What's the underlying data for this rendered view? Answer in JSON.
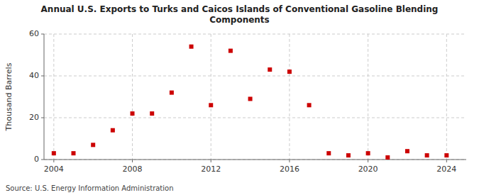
{
  "chart_data": {
    "type": "scatter",
    "title": "Annual U.S. Exports to Turks and Caicos Islands of Conventional Gasoline Blending\nComponents",
    "ylabel": "Thousand Barrels",
    "annotations": [
      "Source: U.S. Energy Information Administration"
    ],
    "x": [
      2004,
      2005,
      2006,
      2007,
      2008,
      2009,
      2010,
      2011,
      2012,
      2013,
      2014,
      2015,
      2016,
      2017,
      2018,
      2019,
      2020,
      2021,
      2022,
      2023,
      2024
    ],
    "values": [
      3,
      3,
      7,
      14,
      22,
      22,
      32,
      54,
      26,
      52,
      29,
      43,
      42,
      26,
      3,
      2,
      3,
      1,
      4,
      2,
      2
    ],
    "color": "#cc0000",
    "marker": "square",
    "xlim": [
      2003.5,
      2025
    ],
    "ylim": [
      0,
      60
    ],
    "xticks": [
      2004,
      2008,
      2012,
      2016,
      2020,
      2024
    ],
    "yticks": [
      0,
      20,
      40,
      60
    ],
    "grid": true
  }
}
